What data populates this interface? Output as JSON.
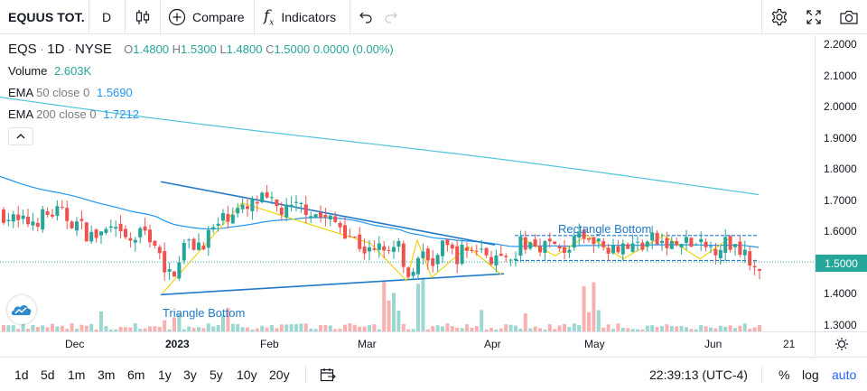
{
  "toolbar": {
    "symbol": "EQUUS TOT.",
    "interval": "D",
    "compare_label": "Compare",
    "indicators_label": "Indicators",
    "icons": [
      "bar-style-icon",
      "plus-circle-icon",
      "fx-icon",
      "undo-icon",
      "redo-icon",
      "settings-icon",
      "fullscreen-icon",
      "camera-icon"
    ]
  },
  "legend": {
    "ticker": "EQS",
    "interval": "1D",
    "exchange": "NYSE",
    "o_label": "O",
    "o_value": "1.4800",
    "h_label": "H",
    "h_value": "1.5300",
    "l_label": "L",
    "l_value": "1.4800",
    "c_label": "C",
    "c_value": "1.5000",
    "change": "0.0000 (0.00%)",
    "volume_label": "Volume",
    "volume_value": "2.603K",
    "ema50_label": "EMA",
    "ema50_params": "50 close 0",
    "ema50_value": "1.5690",
    "ema200_label": "EMA",
    "ema200_params": "200 close 0",
    "ema200_value": "1.7212"
  },
  "annotations": {
    "triangle_label": "Triangle Bottom",
    "rectangle_label": "Rectangle Bottom"
  },
  "price_axis": {
    "ticks": [
      "2.2000",
      "2.1000",
      "2.0000",
      "1.9000",
      "1.8000",
      "1.7000",
      "1.6000",
      "1.5000",
      "1.4000",
      "1.3000"
    ],
    "last_price": "1.5000"
  },
  "time_axis": {
    "ticks": [
      "Dec",
      "2023",
      "Feb",
      "Mar",
      "Apr",
      "May",
      "Jun",
      "21"
    ]
  },
  "bottom": {
    "ranges": [
      "1d",
      "5d",
      "1m",
      "3m",
      "6m",
      "1y",
      "3y",
      "5y",
      "10y",
      "20y"
    ],
    "clock": "22:39:13 (UTC-4)",
    "percent_label": "%",
    "log_label": "log",
    "auto_label": "auto"
  },
  "colors": {
    "up": "#26a69a",
    "down": "#ef5350",
    "ema50": "#2196f3",
    "ema200": "#4fc3d9",
    "pattern": "#f0d000",
    "trendline": "#2179c7",
    "accent": "#2962ff"
  },
  "chart_data": {
    "type": "candlestick",
    "title": "",
    "ylim": [
      1.3,
      2.2
    ],
    "y_ticks": [
      2.2,
      2.1,
      2.0,
      1.9,
      1.8,
      1.7,
      1.6,
      1.5,
      1.4,
      1.3
    ],
    "x_ticks": [
      "Dec",
      "2023",
      "Feb",
      "Mar",
      "Apr",
      "May",
      "Jun",
      "21"
    ],
    "last_close": 1.5,
    "ema50_last": 1.569,
    "ema200_last": 1.7212,
    "annotations": [
      "Triangle Bottom",
      "Rectangle Bottom"
    ]
  }
}
